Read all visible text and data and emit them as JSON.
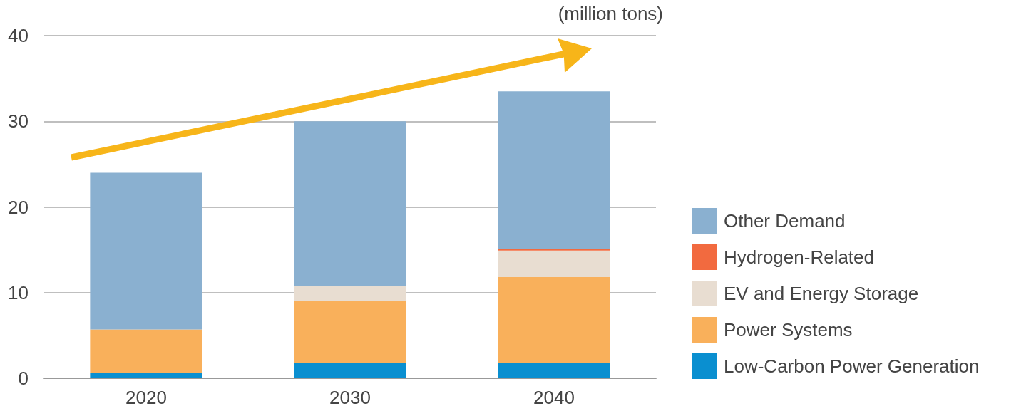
{
  "chart_data": {
    "type": "bar",
    "stacked": true,
    "ylabel": "(million tons)",
    "categories": [
      "2020",
      "2030",
      "2040"
    ],
    "series": [
      {
        "name": "Low-Carbon Power Generation",
        "color": "#0a8fd0",
        "values": [
          0.6,
          1.8,
          1.8
        ]
      },
      {
        "name": "Power Systems",
        "color": "#f9b05b",
        "values": [
          5.1,
          7.2,
          10.0
        ]
      },
      {
        "name": "EV and Energy Storage",
        "color": "#e8ddd1",
        "values": [
          0,
          1.8,
          3.1
        ]
      },
      {
        "name": "Hydrogen-Related",
        "color": "#f26a3f",
        "values": [
          0,
          0,
          0.2
        ]
      },
      {
        "name": "Other Demand",
        "color": "#8ab0d0",
        "values": [
          18.3,
          19.2,
          18.4
        ]
      }
    ],
    "ylim": [
      0,
      40
    ],
    "yticks": [
      0,
      10,
      20,
      30,
      40
    ],
    "grid": "y",
    "legend": "right"
  }
}
